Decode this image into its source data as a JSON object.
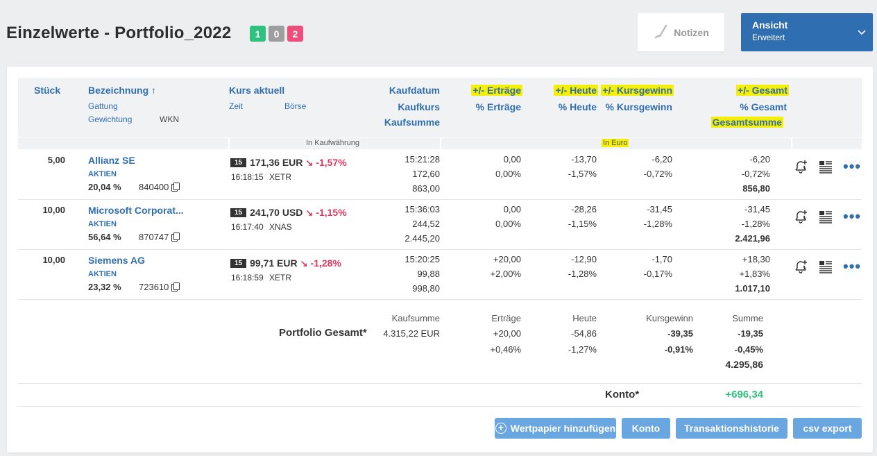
{
  "page": {
    "title": "Einzelwerte - Portfolio_2022",
    "badges": [
      "1",
      "0",
      "2"
    ]
  },
  "toolbar": {
    "notes_label": "Notizen",
    "view_label": "Ansicht",
    "view_value": "Erweitert"
  },
  "headers": {
    "stueck": "Stück",
    "bezeichnung": "Bezeichnung ↑",
    "gattung": "Gattung",
    "gewichtung": "Gewichtung",
    "wkn": "WKN",
    "kurs": "Kurs aktuell",
    "zeit": "Zeit",
    "boerse": "Börse",
    "kaufdatum": "Kaufdatum",
    "kaufkurs": "Kaufkurs",
    "kaufsumme": "Kaufsumme",
    "ertraege": "+/- Erträge",
    "pct_ertraege": "% Erträge",
    "heute": "+/- Heute",
    "pct_heute": "% Heute",
    "kursgewinn": "+/- Kursgewinn",
    "pct_kursgewinn": "% Kursgewinn",
    "gesamt": "+/- Gesamt",
    "pct_gesamt": "% Gesamt",
    "gesamtsumme": "Gesamtsumme",
    "in_kaufwaehrung": "In Kaufwährung",
    "in_euro": "In Euro"
  },
  "rows": [
    {
      "stueck": "5,00",
      "name": "Allianz SE",
      "gattung": "AKTIEN",
      "gewichtung": "20,04 %",
      "wkn": "840400",
      "tag": "15",
      "price": "171,36 EUR",
      "change": "-1,57%",
      "zeit": "16:18:15",
      "boerse": "XETR",
      "kaufdatum": "15:21:28",
      "kaufkurs": "172,60",
      "kaufsumme": "863,00",
      "ertraege": "0,00",
      "pct_ertraege": "0,00%",
      "heute": "-13,70",
      "pct_heute": "-1,57%",
      "kursgewinn": "-6,20",
      "pct_kursgewinn": "-0,72%",
      "gesamt": "-6,20",
      "pct_gesamt": "-0,72%",
      "gesamtsumme": "856,80"
    },
    {
      "stueck": "10,00",
      "name": "Microsoft Corporat...",
      "gattung": "AKTIEN",
      "gewichtung": "56,64 %",
      "wkn": "870747",
      "tag": "15",
      "price": "241,70 USD",
      "change": "-1,15%",
      "zeit": "16:17:40",
      "boerse": "XNAS",
      "kaufdatum": "15:36:03",
      "kaufkurs": "244,52",
      "kaufsumme": "2.445,20",
      "ertraege": "0,00",
      "pct_ertraege": "0,00%",
      "heute": "-28,26",
      "pct_heute": "-1,15%",
      "kursgewinn": "-31,45",
      "pct_kursgewinn": "-1,28%",
      "gesamt": "-31,45",
      "pct_gesamt": "-1,28%",
      "gesamtsumme": "2.421,96"
    },
    {
      "stueck": "10,00",
      "name": "Siemens AG",
      "gattung": "AKTIEN",
      "gewichtung": "23,32 %",
      "wkn": "723610",
      "tag": "15",
      "price": "99,71 EUR",
      "change": "-1,28%",
      "zeit": "16:18:59",
      "boerse": "XETR",
      "kaufdatum": "15:20:25",
      "kaufkurs": "99,88",
      "kaufsumme": "998,80",
      "ertraege": "+20,00",
      "pct_ertraege": "+2,00%",
      "heute": "-12,90",
      "pct_heute": "-1,28%",
      "kursgewinn": "-1,70",
      "pct_kursgewinn": "-0,17%",
      "gesamt": "+18,30",
      "pct_gesamt": "+1,83%",
      "gesamtsumme": "1.017,10"
    }
  ],
  "summary": {
    "label": "Portfolio Gesamt*",
    "kaufsumme_label": "Kaufsumme",
    "kaufsumme": "4.315,22 EUR",
    "ertraege_label": "Erträge",
    "ertraege": "+20,00",
    "pct_ertraege": "+0,46%",
    "heute_label": "Heute",
    "heute": "-54,86",
    "pct_heute": "-1,27%",
    "kursgewinn_label": "Kursgewinn",
    "kursgewinn": "-39,35",
    "pct_kursgewinn": "-0,91%",
    "summe_label": "Summe",
    "summe": "-19,35",
    "pct_summe": "-0,45%",
    "total": "4.295,86"
  },
  "konto": {
    "label": "Konto*",
    "value": "+696,34"
  },
  "buttons": {
    "add": "Wertpapier hinzufügen",
    "konto": "Konto",
    "history": "Transaktionshistorie",
    "csv": "csv export"
  },
  "colors": {
    "accent": "#2f6eb0",
    "negative": "#e5365f",
    "positive": "#2ec27e",
    "highlight": "#f4ef06"
  }
}
